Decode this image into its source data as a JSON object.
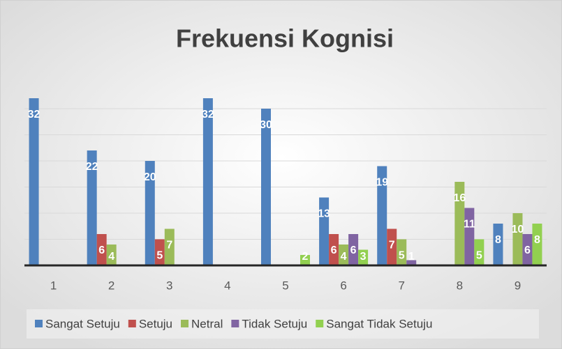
{
  "chart_data": {
    "type": "bar",
    "title": "Frekuensi Kognisi",
    "categories": [
      "1",
      "2",
      "3",
      "4",
      "5",
      "6",
      "7",
      "8",
      "9"
    ],
    "series": [
      {
        "name": "Sangat Setuju",
        "color": "#4f81bd",
        "values": [
          32,
          22,
          20,
          32,
          30,
          13,
          19,
          null,
          8
        ]
      },
      {
        "name": "Setuju",
        "color": "#c0504d",
        "values": [
          null,
          6,
          5,
          null,
          null,
          6,
          7,
          null,
          null
        ]
      },
      {
        "name": "Netral",
        "color": "#9bbb59",
        "values": [
          null,
          4,
          7,
          null,
          null,
          4,
          5,
          16,
          10
        ]
      },
      {
        "name": "Tidak Setuju",
        "color": "#8064a2",
        "values": [
          null,
          null,
          null,
          null,
          null,
          6,
          1,
          11,
          6
        ]
      },
      {
        "name": "Sangat Tidak Setuju",
        "color": "#92d050",
        "values": [
          null,
          null,
          null,
          null,
          2,
          3,
          null,
          5,
          8
        ]
      }
    ],
    "ylim": [
      0,
      35
    ],
    "yticks": [
      0,
      5,
      10,
      15,
      20,
      25,
      30
    ],
    "grid": true,
    "legend": "bottom"
  }
}
